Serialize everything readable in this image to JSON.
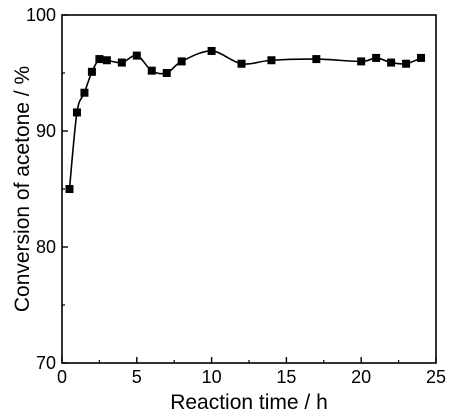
{
  "chart_data": {
    "type": "line",
    "title": "",
    "xlabel": "Reaction time / h",
    "ylabel": "Conversion of acetone / %",
    "xlim": [
      0,
      25
    ],
    "ylim": [
      70,
      100
    ],
    "x_ticks": [
      "0",
      "5",
      "10",
      "15",
      "20",
      "25"
    ],
    "y_ticks": [
      "70",
      "80",
      "90",
      "100"
    ],
    "grid": false,
    "legend": "none",
    "series": [
      {
        "marker": "square",
        "color": "#000000",
        "smooth": true,
        "points": [
          {
            "x": 0.5,
            "y": 85.0
          },
          {
            "x": 1.0,
            "y": 91.6
          },
          {
            "x": 1.5,
            "y": 93.3
          },
          {
            "x": 2.0,
            "y": 95.1
          },
          {
            "x": 2.5,
            "y": 96.2
          },
          {
            "x": 3.0,
            "y": 96.1
          },
          {
            "x": 4.0,
            "y": 95.9
          },
          {
            "x": 5.0,
            "y": 96.5
          },
          {
            "x": 6.0,
            "y": 95.2
          },
          {
            "x": 7.0,
            "y": 95.0
          },
          {
            "x": 8.0,
            "y": 96.0
          },
          {
            "x": 10.0,
            "y": 96.9
          },
          {
            "x": 12.0,
            "y": 95.8
          },
          {
            "x": 14.0,
            "y": 96.1
          },
          {
            "x": 17.0,
            "y": 96.2
          },
          {
            "x": 20.0,
            "y": 96.0
          },
          {
            "x": 21.0,
            "y": 96.3
          },
          {
            "x": 22.0,
            "y": 95.9
          },
          {
            "x": 23.0,
            "y": 95.8
          },
          {
            "x": 24.0,
            "y": 96.3
          }
        ]
      }
    ]
  }
}
